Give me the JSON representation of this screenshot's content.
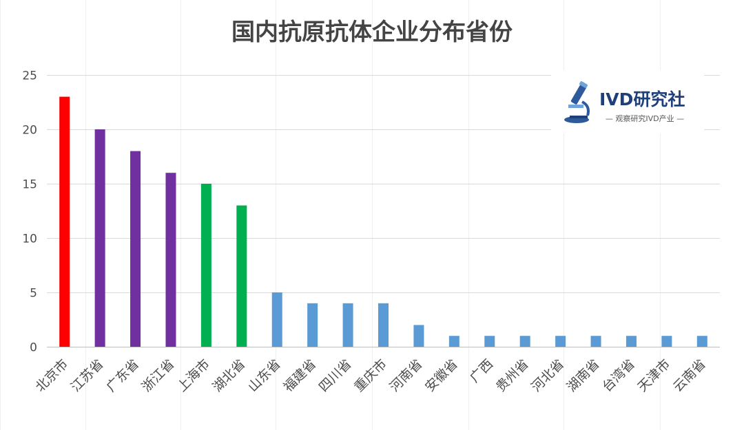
{
  "chart_data": {
    "type": "bar",
    "title": "国内抗原抗体企业分布省份",
    "xlabel": "",
    "ylabel": "",
    "ylim": [
      0,
      25
    ],
    "yticks": [
      0,
      5,
      10,
      15,
      20,
      25
    ],
    "grid": true,
    "legend": "none",
    "categories": [
      "北京市",
      "江苏省",
      "广东省",
      "浙江省",
      "上海市",
      "湖北省",
      "山东省",
      "福建省",
      "四川省",
      "重庆市",
      "河南省",
      "安徽省",
      "广西",
      "贵州省",
      "河北省",
      "湖南省",
      "台湾省",
      "天津市",
      "云南省"
    ],
    "values": [
      23,
      20,
      18,
      16,
      15,
      13,
      5,
      4,
      4,
      4,
      2,
      1,
      1,
      1,
      1,
      1,
      1,
      1,
      1
    ],
    "bar_colors": [
      "#ff0000",
      "#7030a0",
      "#7030a0",
      "#7030a0",
      "#00b050",
      "#00b050",
      "#5b9bd5",
      "#5b9bd5",
      "#5b9bd5",
      "#5b9bd5",
      "#5b9bd5",
      "#5b9bd5",
      "#5b9bd5",
      "#5b9bd5",
      "#5b9bd5",
      "#5b9bd5",
      "#5b9bd5",
      "#5b9bd5",
      "#5b9bd5"
    ]
  },
  "logo": {
    "name": "IVD研究社",
    "tagline": "— 观察研究IVD产业 —",
    "icon": "microscope-icon",
    "color": "#1f3f7a"
  }
}
